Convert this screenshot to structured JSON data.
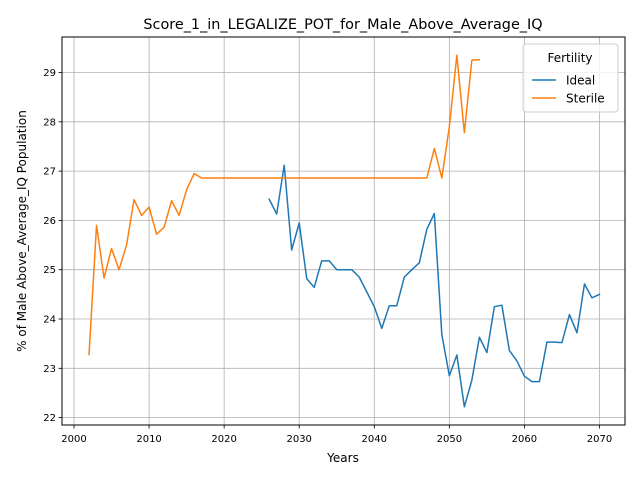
{
  "chart_data": {
    "type": "line",
    "title": "Score_1_in_LEGALIZE_POT_for_Male_Above_Average_IQ",
    "xlabel": "Years",
    "ylabel": "% of Male Above_Average_IQ Population",
    "xlim": [
      1998.4,
      2073.4
    ],
    "ylim": [
      21.85,
      29.72
    ],
    "xticks": [
      2000,
      2010,
      2020,
      2030,
      2040,
      2050,
      2060,
      2070
    ],
    "yticks": [
      22,
      23,
      24,
      25,
      26,
      27,
      28,
      29
    ],
    "grid": true,
    "legend": {
      "title": "Fertility",
      "position": "top-right"
    },
    "series": [
      {
        "name": "Ideal",
        "color": "#1f77b4",
        "points": [
          [
            2026,
            26.43
          ],
          [
            2027,
            26.13
          ],
          [
            2028,
            27.12
          ],
          [
            2029,
            25.4
          ],
          [
            2030,
            25.95
          ],
          [
            2031,
            24.82
          ],
          [
            2032,
            24.64
          ],
          [
            2033,
            25.18
          ],
          [
            2034,
            25.18
          ],
          [
            2035,
            25.0
          ],
          [
            2036,
            25.0
          ],
          [
            2037,
            25.0
          ],
          [
            2038,
            24.85
          ],
          [
            2039,
            24.55
          ],
          [
            2040,
            24.25
          ],
          [
            2041,
            23.81
          ],
          [
            2042,
            24.27
          ],
          [
            2043,
            24.27
          ],
          [
            2044,
            24.85
          ],
          [
            2045,
            25.0
          ],
          [
            2046,
            25.14
          ],
          [
            2047,
            25.82
          ],
          [
            2048,
            26.14
          ],
          [
            2049,
            23.68
          ],
          [
            2050,
            22.85
          ],
          [
            2051,
            23.27
          ],
          [
            2052,
            22.22
          ],
          [
            2053,
            22.76
          ],
          [
            2054,
            23.63
          ],
          [
            2055,
            23.32
          ],
          [
            2056,
            24.25
          ],
          [
            2057,
            24.28
          ],
          [
            2058,
            23.36
          ],
          [
            2059,
            23.15
          ],
          [
            2060,
            22.84
          ],
          [
            2061,
            22.73
          ],
          [
            2062,
            22.73
          ],
          [
            2063,
            23.53
          ],
          [
            2064,
            23.53
          ],
          [
            2065,
            23.52
          ],
          [
            2066,
            24.09
          ],
          [
            2067,
            23.72
          ],
          [
            2068,
            24.71
          ],
          [
            2069,
            24.43
          ],
          [
            2070,
            24.5
          ]
        ]
      },
      {
        "name": "Sterile",
        "color": "#ff7f0e",
        "points": [
          [
            2002,
            23.28
          ],
          [
            2003,
            25.9
          ],
          [
            2004,
            24.83
          ],
          [
            2005,
            25.43
          ],
          [
            2006,
            25.0
          ],
          [
            2007,
            25.5
          ],
          [
            2008,
            26.42
          ],
          [
            2009,
            26.1
          ],
          [
            2010,
            26.27
          ],
          [
            2011,
            25.72
          ],
          [
            2012,
            25.86
          ],
          [
            2013,
            26.4
          ],
          [
            2014,
            26.1
          ],
          [
            2015,
            26.62
          ],
          [
            2016,
            26.95
          ],
          [
            2017,
            26.86
          ],
          [
            2018,
            26.86
          ],
          [
            2019,
            26.86
          ],
          [
            2020,
            26.86
          ],
          [
            2021,
            26.86
          ],
          [
            2022,
            26.86
          ],
          [
            2023,
            26.86
          ],
          [
            2024,
            26.86
          ],
          [
            2025,
            26.86
          ],
          [
            2026,
            26.86
          ],
          [
            2027,
            26.86
          ],
          [
            2028,
            26.86
          ],
          [
            2029,
            26.86
          ],
          [
            2030,
            26.86
          ],
          [
            2031,
            26.86
          ],
          [
            2032,
            26.86
          ],
          [
            2033,
            26.86
          ],
          [
            2034,
            26.86
          ],
          [
            2035,
            26.86
          ],
          [
            2036,
            26.86
          ],
          [
            2037,
            26.86
          ],
          [
            2038,
            26.86
          ],
          [
            2039,
            26.86
          ],
          [
            2040,
            26.86
          ],
          [
            2041,
            26.86
          ],
          [
            2042,
            26.86
          ],
          [
            2043,
            26.86
          ],
          [
            2044,
            26.86
          ],
          [
            2045,
            26.86
          ],
          [
            2046,
            26.86
          ],
          [
            2047,
            26.86
          ],
          [
            2048,
            27.46
          ],
          [
            2049,
            26.86
          ],
          [
            2050,
            27.9
          ],
          [
            2051,
            29.35
          ],
          [
            2052,
            27.78
          ],
          [
            2053,
            29.25
          ],
          [
            2054,
            29.26
          ]
        ]
      }
    ]
  }
}
